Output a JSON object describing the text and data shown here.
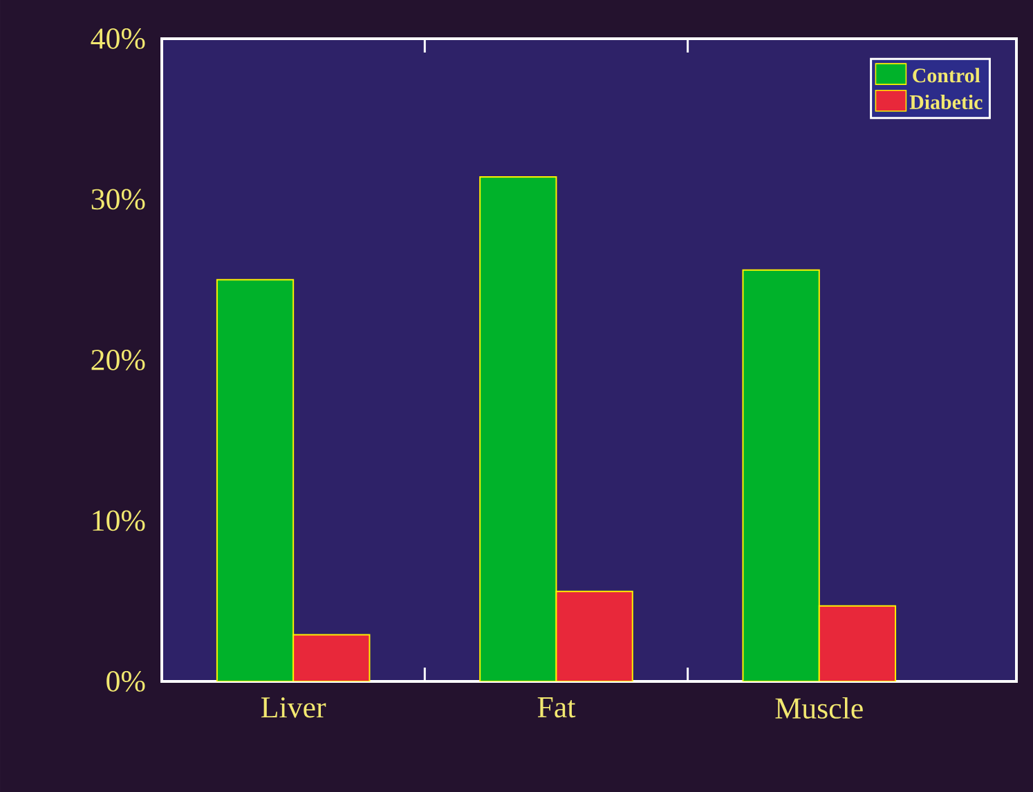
{
  "chart_data": {
    "type": "bar",
    "categories": [
      "Liver",
      "Fat",
      "Muscle"
    ],
    "series": [
      {
        "name": "Control",
        "color": "#00b22a",
        "values": [
          25,
          31.4,
          25.6
        ]
      },
      {
        "name": "Diabetic",
        "color": "#e8283a",
        "values": [
          2.9,
          5.6,
          4.7
        ]
      }
    ],
    "ylim": [
      0,
      40
    ],
    "yticks": [
      {
        "value": 0,
        "label": "0%"
      },
      {
        "value": 10,
        "label": "10%"
      },
      {
        "value": 20,
        "label": "20%"
      },
      {
        "value": 30,
        "label": "30%"
      },
      {
        "value": 40,
        "label": "40%"
      }
    ],
    "grid": false,
    "legend": "top right"
  }
}
